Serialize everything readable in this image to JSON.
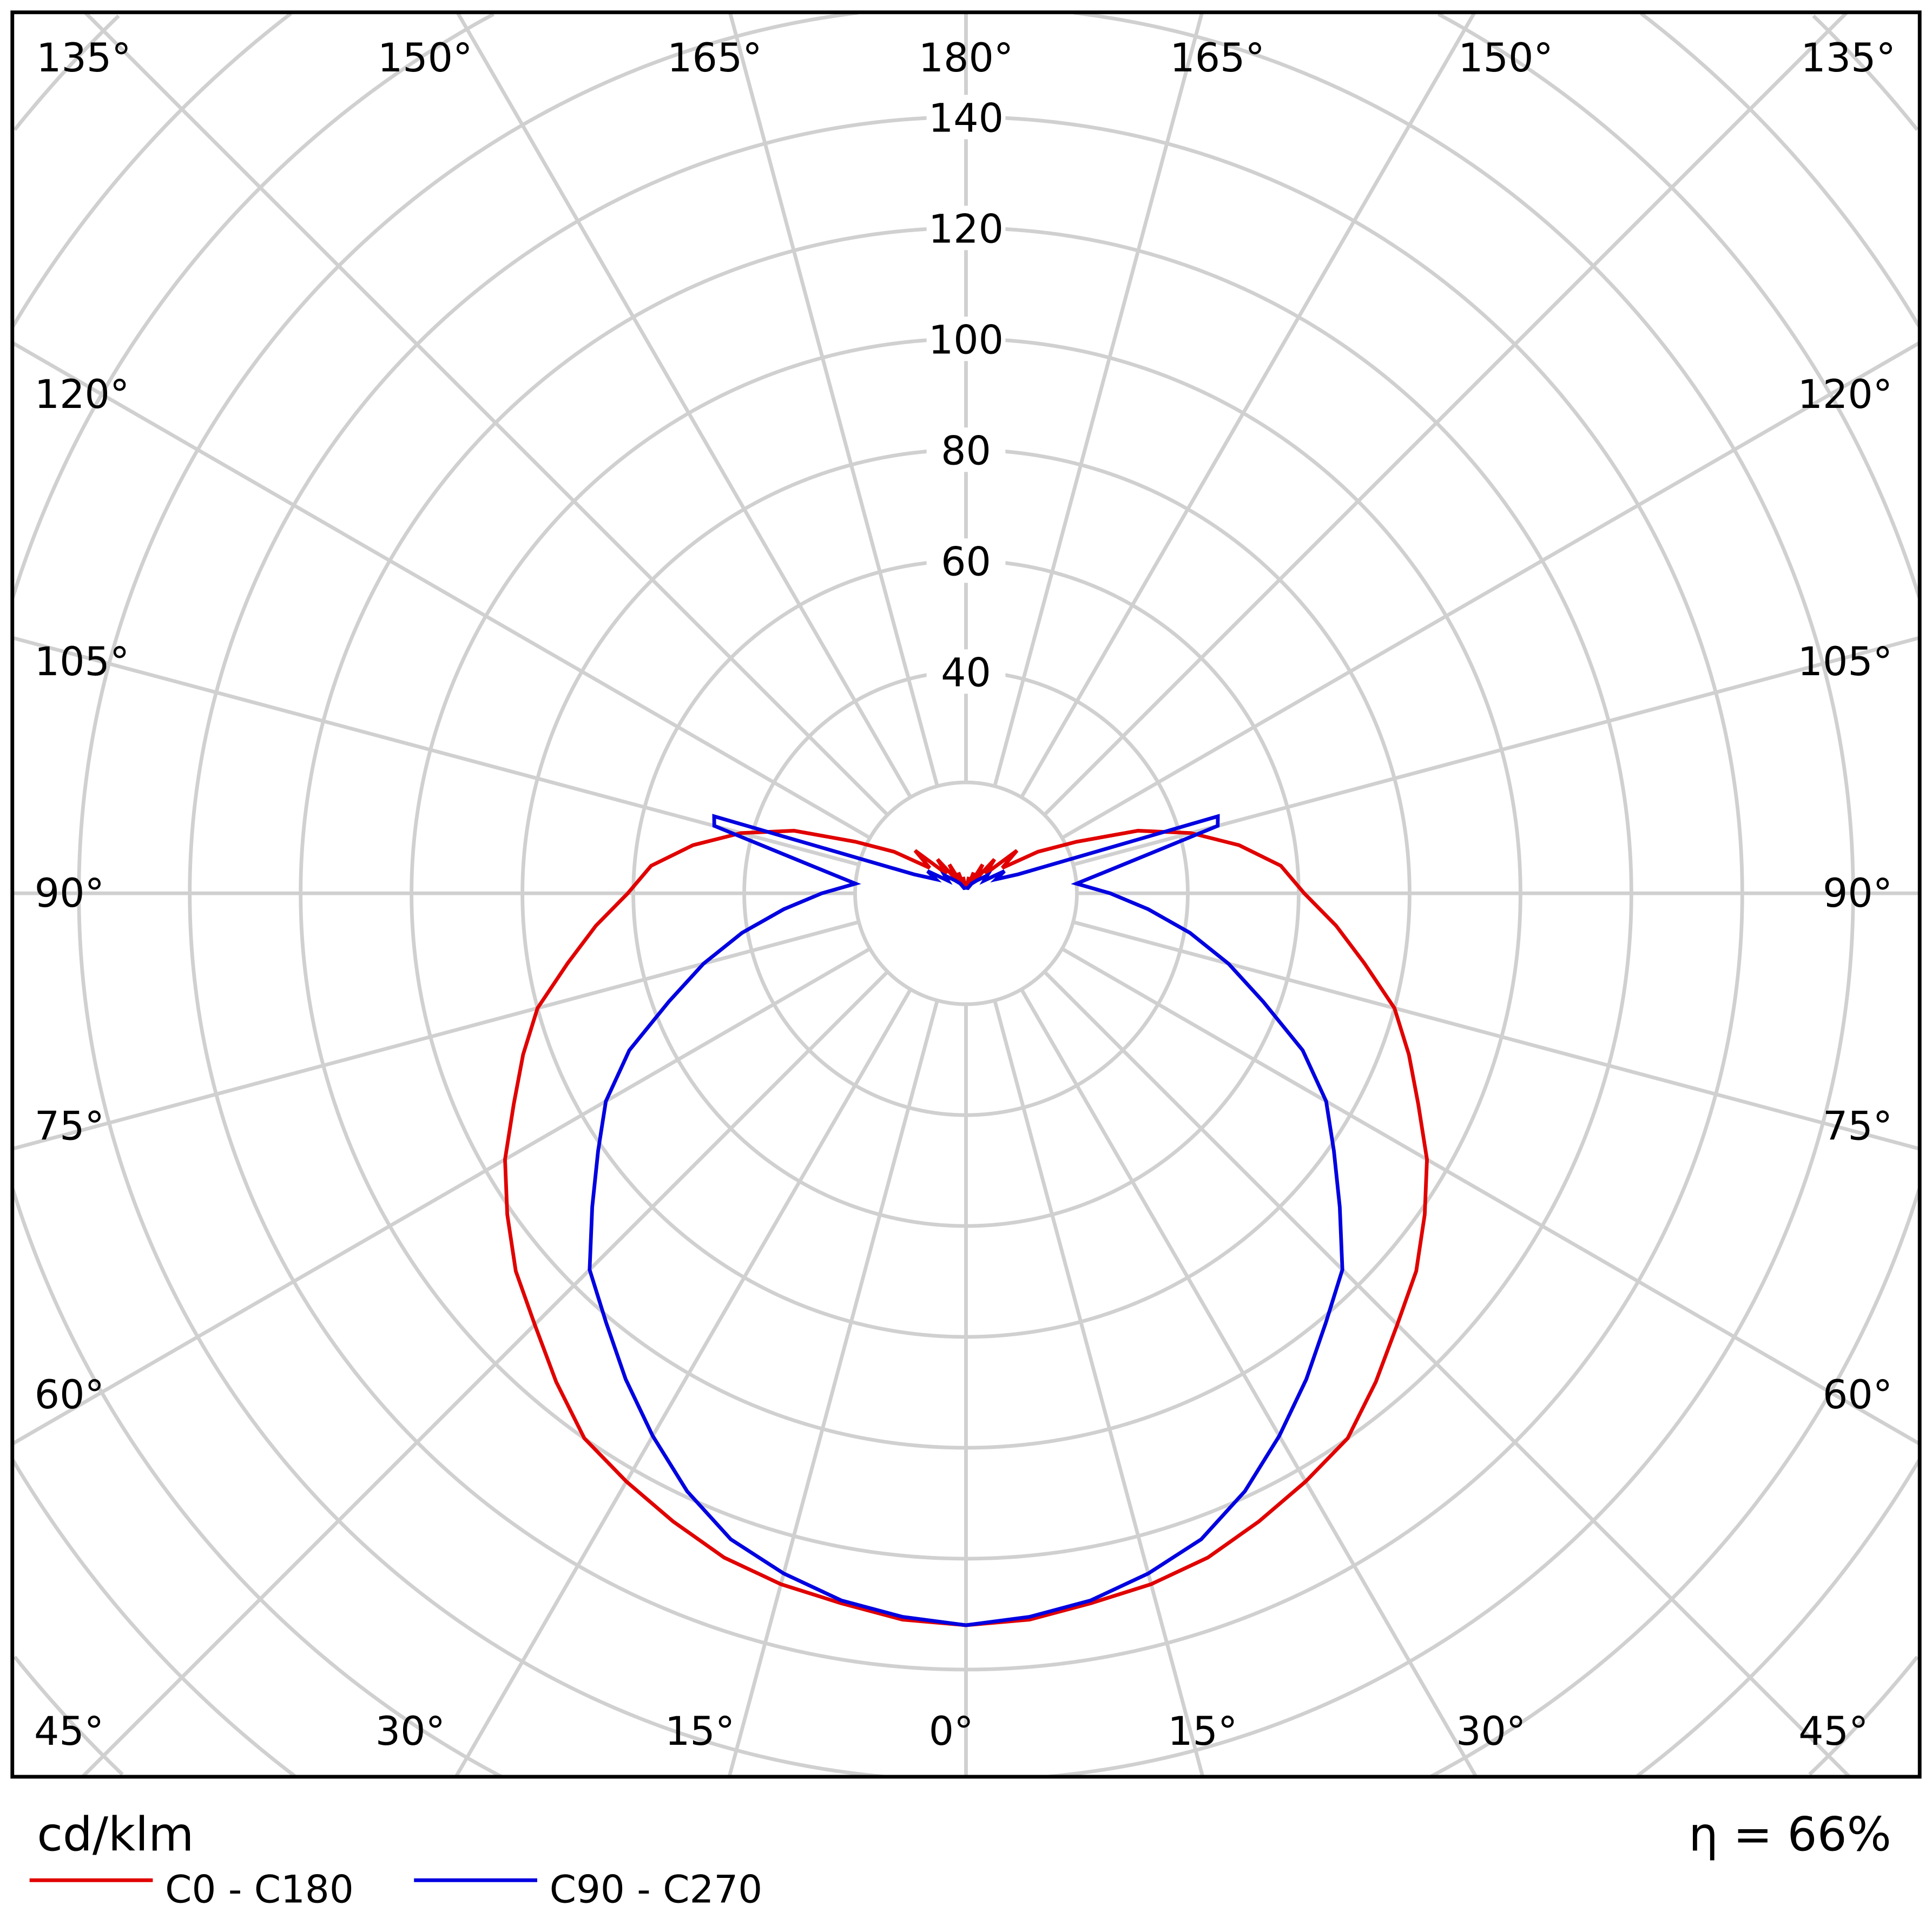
{
  "chart_data": {
    "type": "polar-line",
    "unit_label": "cd/klm",
    "efficiency_label": "η = 66%",
    "radial_ticks": [
      40,
      60,
      80,
      100,
      120,
      140
    ],
    "radial_grid_step": 20,
    "angular_grid_step_deg": 15,
    "grid": true,
    "angle_labels": {
      "top": [
        "135°",
        "150°",
        "165°",
        "180°",
        "165°",
        "150°",
        "135°"
      ],
      "left": [
        "120°",
        "105°",
        "90°",
        "75°",
        "60°"
      ],
      "right": [
        "120°",
        "105°",
        "90°",
        "75°",
        "60°"
      ],
      "bottom": [
        "45°",
        "30°",
        "15°",
        "0°",
        "15°",
        "30°",
        "45°"
      ]
    },
    "legend_position": "bottom-left",
    "series": [
      {
        "name": "C0 - C180",
        "color": "#e00000",
        "gamma_deg": [
          0,
          5,
          10,
          15,
          20,
          25,
          30,
          35,
          40,
          45,
          50,
          55,
          60,
          65,
          70,
          75,
          80,
          85,
          90,
          95,
          100,
          105,
          110,
          115,
          120,
          125,
          130,
          135,
          140,
          145,
          150,
          155,
          160,
          165,
          170,
          175,
          180
        ],
        "values": [
          132,
          131.5,
          130,
          129,
          127.5,
          125,
          122.5,
          120,
          115,
          110,
          106,
          101,
          96,
          90,
          85,
          80,
          73,
          67,
          61,
          57,
          50,
          42,
          33,
          22,
          15,
          8,
          12,
          5,
          8,
          3,
          6,
          2,
          4,
          1,
          3,
          1,
          2
        ]
      },
      {
        "name": "C90 - C270",
        "color": "#0000e0",
        "gamma_deg": [
          0,
          5,
          10,
          15,
          20,
          25,
          30,
          35,
          40,
          45,
          50,
          55,
          60,
          65,
          70,
          75,
          80,
          85,
          90,
          95,
          100,
          105,
          107,
          110,
          115,
          120,
          125,
          130,
          140,
          150,
          160,
          180
        ],
        "values": [
          132,
          131,
          129.5,
          127,
          124,
          119,
          113,
          107,
          101,
          96,
          88,
          81,
          75,
          67,
          57,
          49,
          41,
          33,
          26,
          20,
          28,
          47,
          47.5,
          10,
          6,
          8,
          4,
          5,
          3,
          2,
          1,
          1
        ]
      }
    ]
  }
}
